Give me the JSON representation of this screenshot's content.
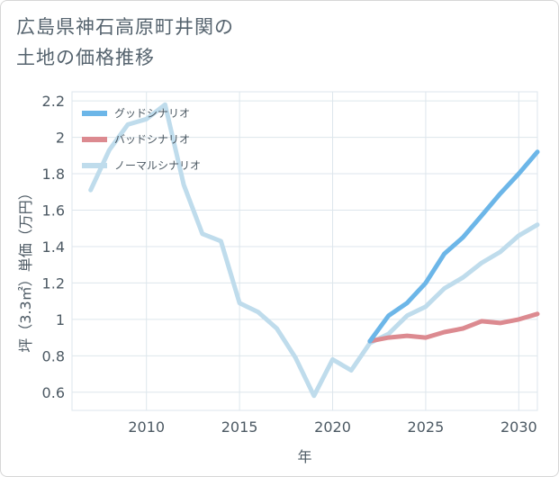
{
  "title_lines": [
    "広島県神石高原町井関の",
    "土地の価格推移"
  ],
  "chart_data": {
    "type": "line",
    "xlabel": "年",
    "ylabel": "坪（3.3㎡）単価（万円）",
    "xlim": [
      2006,
      2031
    ],
    "ylim": [
      0.5,
      2.25
    ],
    "x_ticks": [
      2010,
      2015,
      2020,
      2025,
      2030
    ],
    "y_ticks": [
      0.6,
      0.8,
      1,
      1.2,
      1.4,
      1.6,
      1.8,
      2,
      2.2
    ],
    "y_tick_labels": [
      "0.6",
      "0.8",
      "1",
      "1.2",
      "1.4",
      "1.6",
      "1.8",
      "2",
      "2.2"
    ],
    "grid": true,
    "legend_position": "top-left",
    "series": [
      {
        "name": "グッドシナリオ",
        "color": "#6cb6e8",
        "x": [
          2022,
          2023,
          2024,
          2025,
          2026,
          2027,
          2028,
          2029,
          2030,
          2031
        ],
        "y": [
          0.88,
          1.02,
          1.09,
          1.2,
          1.36,
          1.45,
          1.57,
          1.69,
          1.8,
          1.92
        ]
      },
      {
        "name": "バッドシナリオ",
        "color": "#dc8a90",
        "x": [
          2022,
          2023,
          2024,
          2025,
          2026,
          2027,
          2028,
          2029,
          2030,
          2031
        ],
        "y": [
          0.88,
          0.9,
          0.91,
          0.9,
          0.93,
          0.95,
          0.99,
          0.98,
          1.0,
          1.03
        ]
      },
      {
        "name": "ノーマルシナリオ",
        "color": "#bfdcec",
        "x": [
          2007,
          2008,
          2009,
          2010,
          2011,
          2012,
          2013,
          2014,
          2015,
          2016,
          2017,
          2018,
          2019,
          2020,
          2021,
          2022,
          2023,
          2024,
          2025,
          2026,
          2027,
          2028,
          2029,
          2030,
          2031
        ],
        "y": [
          1.71,
          1.93,
          2.07,
          2.1,
          2.18,
          1.74,
          1.47,
          1.43,
          1.09,
          1.04,
          0.95,
          0.79,
          0.58,
          0.78,
          0.72,
          0.87,
          0.92,
          1.02,
          1.07,
          1.17,
          1.23,
          1.31,
          1.37,
          1.46,
          1.52
        ]
      }
    ]
  }
}
